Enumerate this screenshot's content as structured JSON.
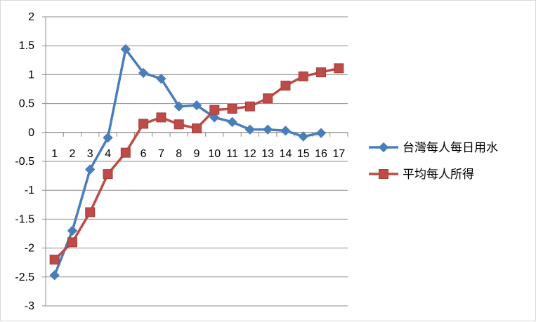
{
  "chart_data": {
    "type": "line",
    "categories": [
      "1",
      "2",
      "3",
      "4",
      "5",
      "6",
      "7",
      "8",
      "9",
      "10",
      "11",
      "12",
      "13",
      "14",
      "15",
      "16",
      "17"
    ],
    "series": [
      {
        "name": "台灣每人每日用水",
        "color": "#4a7ebb",
        "marker": "diamond",
        "values": [
          -2.47,
          -1.7,
          -0.64,
          -0.09,
          1.44,
          1.03,
          0.93,
          0.45,
          0.47,
          0.26,
          0.18,
          0.05,
          0.05,
          0.03,
          -0.07,
          -0.01,
          null
        ]
      },
      {
        "name": "平均每人所得",
        "color": "#be4b48",
        "marker": "square",
        "values": [
          -2.2,
          -1.9,
          -1.38,
          -0.72,
          -0.35,
          0.15,
          0.26,
          0.14,
          0.07,
          0.39,
          0.41,
          0.45,
          0.59,
          0.81,
          0.97,
          1.04,
          1.11
        ]
      }
    ],
    "ylim": [
      -3,
      2
    ],
    "yticks": [
      "2",
      "1.5",
      "1",
      "0.5",
      "0",
      "-0.5",
      "-1",
      "-1.5",
      "-2",
      "-2.5",
      "-3"
    ],
    "ytick_values": [
      2,
      1.5,
      1,
      0.5,
      0,
      -0.5,
      -1,
      -1.5,
      -2,
      -2.5,
      -3
    ],
    "grid": true,
    "legend_position": "right",
    "gridline_color": "#8c8c8c"
  }
}
